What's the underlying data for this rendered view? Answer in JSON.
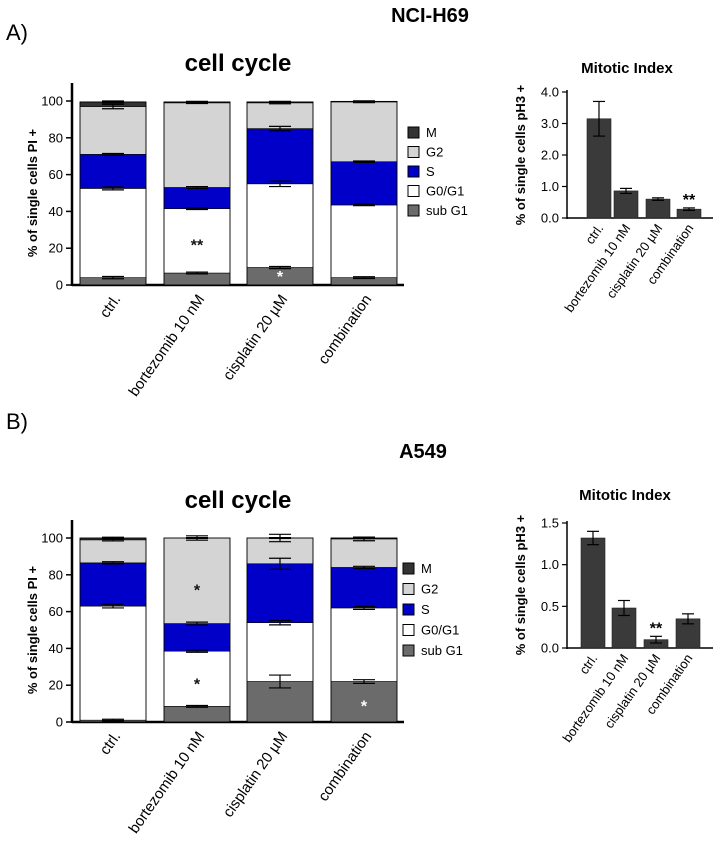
{
  "panels": [
    {
      "id": "A",
      "label": "A)",
      "cell_line": "NCI-H69",
      "cell_cycle_title": "cell cycle",
      "mitotic_title": "Mitotic Index"
    },
    {
      "id": "B",
      "label": "B)",
      "cell_line": "A549",
      "cell_cycle_title": "cell cycle",
      "mitotic_title": "Mitotic Index"
    }
  ],
  "colors": {
    "M": "#333333",
    "G2": "#d4d4d4",
    "S": "#0000c8",
    "G0/G1": "#ffffff",
    "sub G1": "#6b6b6b",
    "mitotic_bar": "#3a3a3a"
  },
  "chart_data": [
    {
      "id": "A-cellcycle",
      "type": "bar",
      "stacked": true,
      "title": "cell cycle",
      "ylabel": "% of single cells PI +",
      "ylim": [
        0,
        100
      ],
      "yticks": [
        0,
        20,
        40,
        60,
        80,
        100
      ],
      "categories": [
        "ctrl.",
        "bortezomib 10 nM",
        "cisplatin 20 µM",
        "combination"
      ],
      "legend": [
        "M",
        "G2",
        "S",
        "G0/G1",
        "sub G1"
      ],
      "series": [
        {
          "name": "sub G1",
          "values": [
            4,
            6.5,
            9.5,
            4
          ],
          "errors": [
            0.6,
            0.5,
            0.6,
            0.5
          ]
        },
        {
          "name": "G0/G1",
          "values": [
            48.5,
            35,
            45.5,
            39.5
          ],
          "errors": [
            0.8,
            0.5,
            1.5,
            0.4
          ]
        },
        {
          "name": "S",
          "values": [
            18.5,
            11.5,
            30,
            23.5
          ],
          "errors": [
            0.5,
            0.5,
            1.2,
            0.4
          ]
        },
        {
          "name": "G2",
          "values": [
            26,
            46,
            14,
            32.5
          ],
          "errors": [
            1.2,
            0.4,
            0.5,
            0.4
          ]
        },
        {
          "name": "M",
          "values": [
            2.5,
            0.5,
            0.5,
            0.3
          ],
          "errors": [
            0.5,
            0.3,
            0.3,
            0.3
          ]
        }
      ],
      "annotations": [
        {
          "text": "**",
          "category": "bortezomib 10 nM",
          "y": 22,
          "color": "#111111"
        },
        {
          "text": "*",
          "category": "cisplatin 20 µM",
          "y": 5,
          "color": "#ffffff"
        }
      ]
    },
    {
      "id": "A-mitotic",
      "type": "bar",
      "title": "Mitotic Index",
      "ylabel": "% of single cells pH3 +",
      "ylim": [
        0,
        4.0
      ],
      "yticks": [
        0.0,
        1.0,
        2.0,
        3.0,
        4.0
      ],
      "ytick_labels": [
        "0.0",
        "1.0",
        "2.0",
        "3.0",
        "4.0"
      ],
      "categories": [
        "ctrl.",
        "bortezomib 10 nM",
        "cisplatin 20 µM",
        "combination"
      ],
      "values": [
        3.15,
        0.86,
        0.6,
        0.28
      ],
      "errors": [
        0.55,
        0.08,
        0.04,
        0.04
      ],
      "annotations": [
        {
          "text": "**",
          "category": "combination"
        }
      ]
    },
    {
      "id": "B-cellcycle",
      "type": "bar",
      "stacked": true,
      "title": "cell cycle",
      "ylabel": "% of single cells PI +",
      "ylim": [
        0,
        100
      ],
      "yticks": [
        0,
        20,
        40,
        60,
        80,
        100
      ],
      "categories": [
        "ctrl.",
        "bortezomib 10 nM",
        "cisplatin 20 µM",
        "combination"
      ],
      "legend": [
        "M",
        "G2",
        "S",
        "G0/G1",
        "sub G1"
      ],
      "series": [
        {
          "name": "sub G1",
          "values": [
            1,
            8.5,
            22,
            22
          ],
          "errors": [
            0.5,
            0.5,
            3.5,
            1
          ]
        },
        {
          "name": "G0/G1",
          "values": [
            62,
            30,
            32,
            40
          ],
          "errors": [
            1,
            0.6,
            1.2,
            0.8
          ]
        },
        {
          "name": "S",
          "values": [
            23.5,
            15,
            32,
            22
          ],
          "errors": [
            0.6,
            0.8,
            3,
            0.6
          ]
        },
        {
          "name": "G2",
          "values": [
            12.5,
            46.5,
            14,
            15.5
          ],
          "errors": [
            0.6,
            1.2,
            2,
            1
          ]
        },
        {
          "name": "M",
          "values": [
            1,
            0,
            0,
            0.5
          ],
          "errors": [
            0.4,
            0.2,
            0.2,
            0.3
          ]
        }
      ],
      "annotations": [
        {
          "text": "*",
          "category": "bortezomib 10 nM",
          "y": 72,
          "color": "#111111"
        },
        {
          "text": "*",
          "category": "bortezomib 10 nM",
          "y": 21,
          "color": "#111111"
        },
        {
          "text": "*",
          "category": "combination",
          "y": 9,
          "color": "#ffffff"
        }
      ]
    },
    {
      "id": "B-mitotic",
      "type": "bar",
      "title": "Mitotic Index",
      "ylabel": "% of single cells pH3 +",
      "ylim": [
        0,
        1.5
      ],
      "yticks": [
        0.0,
        0.5,
        1.0,
        1.5
      ],
      "ytick_labels": [
        "0.0",
        "0.5",
        "1.0",
        "1.5"
      ],
      "categories": [
        "ctrl.",
        "bortezomib 10 nM",
        "cisplatin 20 µM",
        "combination"
      ],
      "values": [
        1.32,
        0.48,
        0.1,
        0.35
      ],
      "errors": [
        0.08,
        0.09,
        0.04,
        0.06
      ],
      "annotations": [
        {
          "text": "**",
          "category": "cisplatin 20 µM"
        }
      ]
    }
  ]
}
